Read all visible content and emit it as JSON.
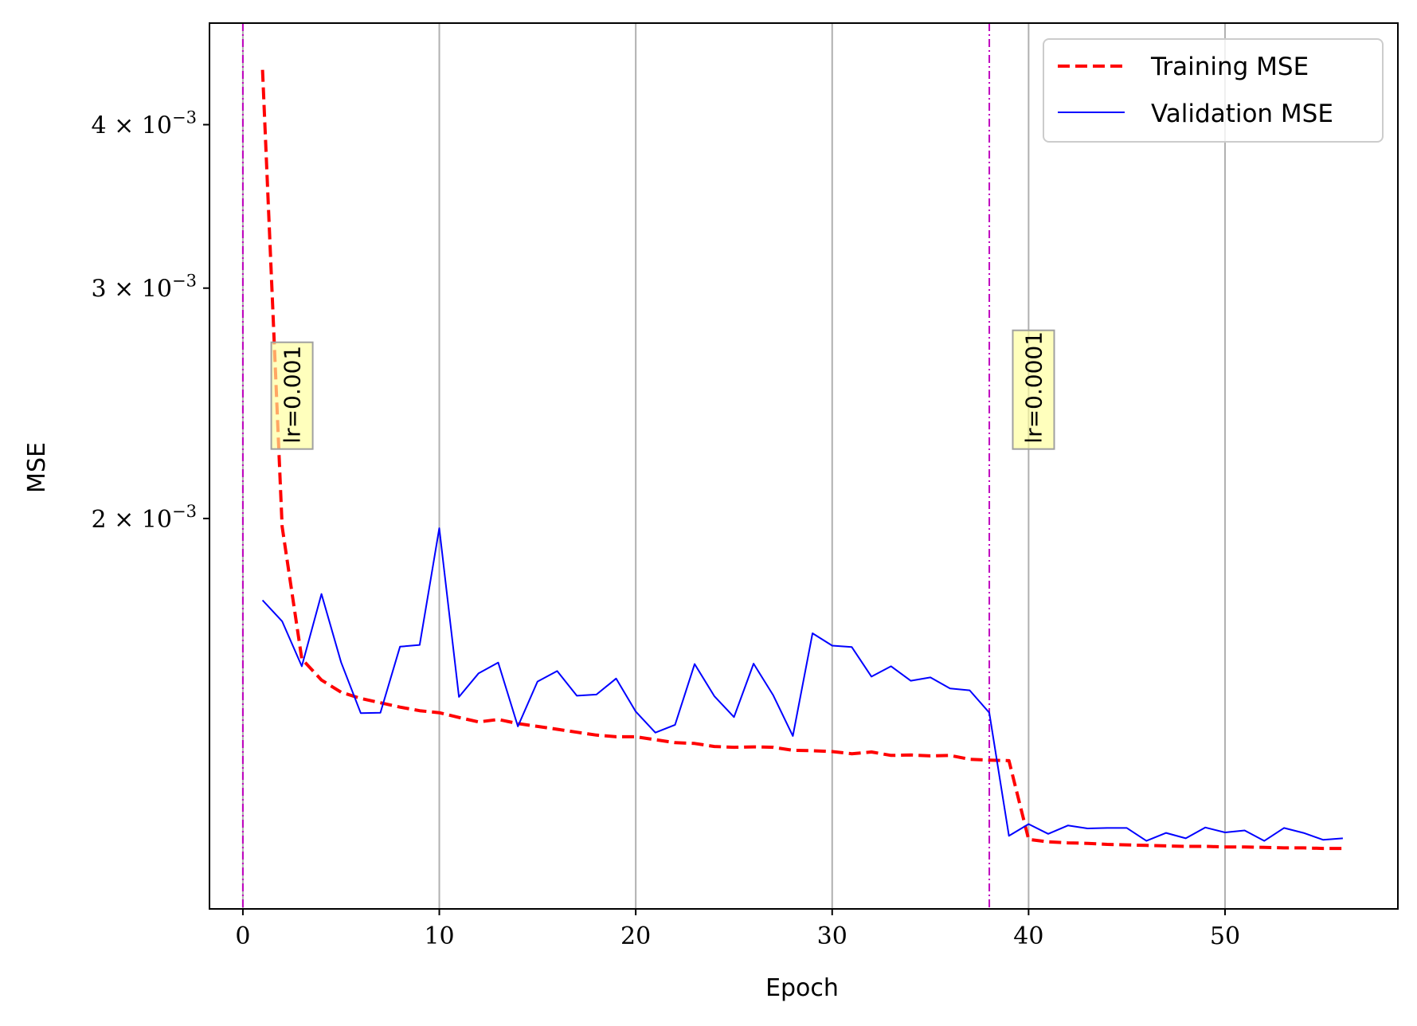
{
  "chart_data": {
    "type": "line",
    "xlabel": "Epoch",
    "ylabel": "MSE",
    "yscale": "log",
    "xlim": [
      -1.7,
      58.8
    ],
    "ylim": [
      0.001006,
      0.004783
    ],
    "grid": "vertical",
    "legend_position": "top-right",
    "x_ticks": [
      {
        "value": 0,
        "label": "0"
      },
      {
        "value": 10,
        "label": "10"
      },
      {
        "value": 20,
        "label": "20"
      },
      {
        "value": 30,
        "label": "30"
      },
      {
        "value": 40,
        "label": "40"
      },
      {
        "value": 50,
        "label": "50"
      }
    ],
    "y_ticks": [
      {
        "value": 0.002,
        "mant": "2",
        "base": " × 10",
        "exp": "−3"
      },
      {
        "value": 0.003,
        "mant": "3",
        "base": " × 10",
        "exp": "−3"
      },
      {
        "value": 0.004,
        "mant": "4",
        "base": " × 10",
        "exp": "−3"
      }
    ],
    "series": [
      {
        "name": "Training MSE",
        "color": "#ff0000",
        "style": "dashed",
        "x": [
          1,
          2,
          3,
          4,
          5,
          6,
          7,
          8,
          9,
          10,
          11,
          12,
          13,
          14,
          15,
          16,
          17,
          18,
          19,
          20,
          21,
          22,
          23,
          24,
          25,
          26,
          27,
          28,
          29,
          30,
          31,
          32,
          33,
          34,
          35,
          36,
          37,
          38,
          39,
          40,
          41,
          42,
          43,
          44,
          45,
          46,
          47,
          48,
          49,
          50,
          51,
          52,
          53,
          54,
          55,
          56
        ],
        "y": [
          0.004405,
          0.001972,
          0.001562,
          0.001505,
          0.001473,
          0.001457,
          0.001446,
          0.001435,
          0.001426,
          0.001421,
          0.001409,
          0.001398,
          0.001404,
          0.001394,
          0.001387,
          0.00138,
          0.001373,
          0.001366,
          0.001362,
          0.001362,
          0.001355,
          0.001348,
          0.001346,
          0.001339,
          0.001337,
          0.001338,
          0.001337,
          0.00133,
          0.001329,
          0.001327,
          0.001322,
          0.001326,
          0.001318,
          0.001319,
          0.001317,
          0.001318,
          0.001309,
          0.001307,
          0.001306,
          0.001137,
          0.001132,
          0.00113,
          0.001129,
          0.001127,
          0.001126,
          0.001125,
          0.001124,
          0.001123,
          0.001123,
          0.001122,
          0.001122,
          0.001121,
          0.00112,
          0.00112,
          0.001119,
          0.001119
        ]
      },
      {
        "name": "Validation MSE",
        "color": "#0000ff",
        "style": "solid",
        "x": [
          1,
          2,
          3,
          4,
          5,
          6,
          7,
          8,
          9,
          10,
          11,
          12,
          13,
          14,
          15,
          16,
          17,
          18,
          19,
          20,
          21,
          22,
          23,
          24,
          25,
          26,
          27,
          28,
          29,
          30,
          31,
          32,
          33,
          34,
          35,
          36,
          37,
          38,
          39,
          40,
          41,
          42,
          43,
          44,
          45,
          46,
          47,
          48,
          49,
          50,
          51,
          52,
          53,
          54,
          55,
          56
        ],
        "y": [
          0.001732,
          0.001669,
          0.001542,
          0.001751,
          0.001553,
          0.00142,
          0.001421,
          0.001596,
          0.001601,
          0.001966,
          0.001461,
          0.001523,
          0.001552,
          0.001387,
          0.001501,
          0.001529,
          0.001464,
          0.001467,
          0.001509,
          0.001424,
          0.001372,
          0.001391,
          0.001548,
          0.001463,
          0.00141,
          0.001549,
          0.001465,
          0.001364,
          0.001634,
          0.001599,
          0.001595,
          0.001514,
          0.001542,
          0.001503,
          0.001512,
          0.001483,
          0.001478,
          0.001421,
          0.001144,
          0.001168,
          0.001148,
          0.001165,
          0.001159,
          0.00116,
          0.00116,
          0.001134,
          0.00115,
          0.001139,
          0.001161,
          0.001151,
          0.001155,
          0.001134,
          0.00116,
          0.00115,
          0.001136,
          0.001139
        ]
      }
    ],
    "vlines": [
      {
        "x": 0,
        "color": "#bf00bf"
      },
      {
        "x": 38,
        "color": "#bf00bf"
      }
    ],
    "annotations": [
      {
        "text": "lr=0.001",
        "x": 2.5,
        "y": 0.00226,
        "rotation": 90
      },
      {
        "text": "lr=0.0001",
        "x": 40.25,
        "y": 0.00226,
        "rotation": 90
      }
    ]
  },
  "legend": {
    "entries": [
      "Training MSE",
      "Validation MSE"
    ]
  }
}
